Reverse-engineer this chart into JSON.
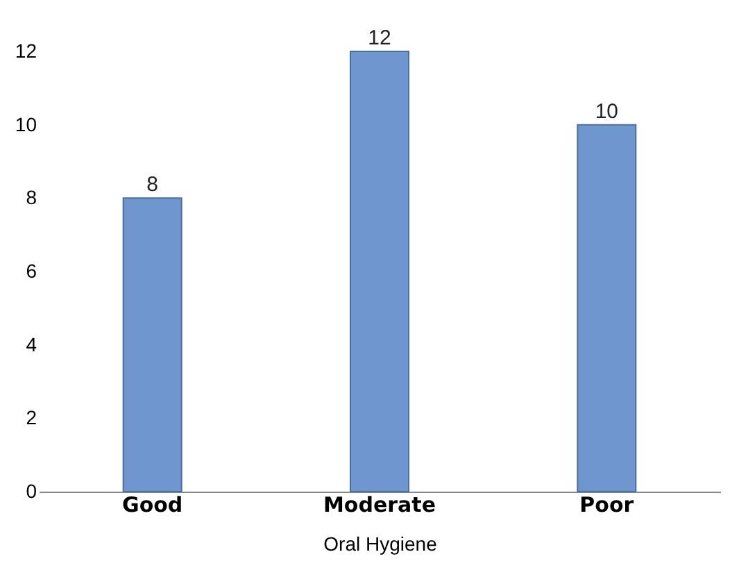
{
  "chart_data": {
    "type": "bar",
    "xlabel": "Oral Hygiene",
    "categories": [
      "Good",
      "Moderate",
      "Poor"
    ],
    "values": [
      8,
      12,
      10
    ],
    "color": "#6f96cf",
    "ylim": [
      0,
      12
    ],
    "yticks": [
      0,
      2,
      4,
      6,
      8,
      10,
      12
    ],
    "grid": false,
    "data_labels": true
  }
}
